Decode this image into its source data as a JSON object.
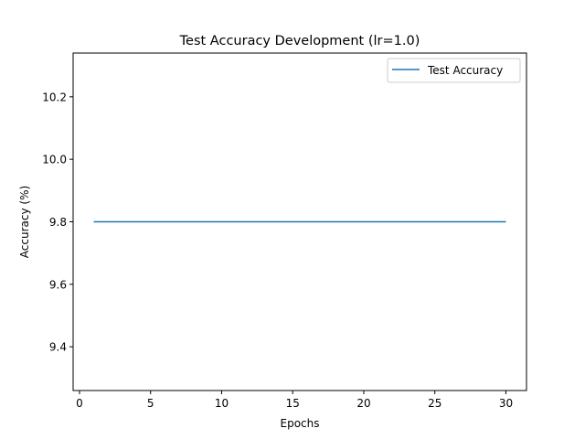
{
  "chart_data": {
    "type": "line",
    "title": "Test Accuracy Development (lr=1.0)",
    "xlabel": "Epochs",
    "ylabel": "Accuracy (%)",
    "xlim": [
      -0.45,
      31.45
    ],
    "ylim": [
      9.26,
      10.34
    ],
    "xticks": [
      0,
      5,
      10,
      15,
      20,
      25,
      30
    ],
    "yticks": [
      9.4,
      9.6,
      9.8,
      10.0,
      10.2
    ],
    "ytick_labels": [
      "9.4",
      "9.6",
      "9.8",
      "10.0",
      "10.2"
    ],
    "grid": false,
    "legend_position": "top-right",
    "series": [
      {
        "name": "Test Accuracy",
        "color": "#1f77b4",
        "x": [
          1,
          2,
          3,
          4,
          5,
          6,
          7,
          8,
          9,
          10,
          11,
          12,
          13,
          14,
          15,
          16,
          17,
          18,
          19,
          20,
          21,
          22,
          23,
          24,
          25,
          26,
          27,
          28,
          29,
          30
        ],
        "y": [
          9.8,
          9.8,
          9.8,
          9.8,
          9.8,
          9.8,
          9.8,
          9.8,
          9.8,
          9.8,
          9.8,
          9.8,
          9.8,
          9.8,
          9.8,
          9.8,
          9.8,
          9.8,
          9.8,
          9.8,
          9.8,
          9.8,
          9.8,
          9.8,
          9.8,
          9.8,
          9.8,
          9.8,
          9.8,
          9.8
        ]
      }
    ]
  }
}
